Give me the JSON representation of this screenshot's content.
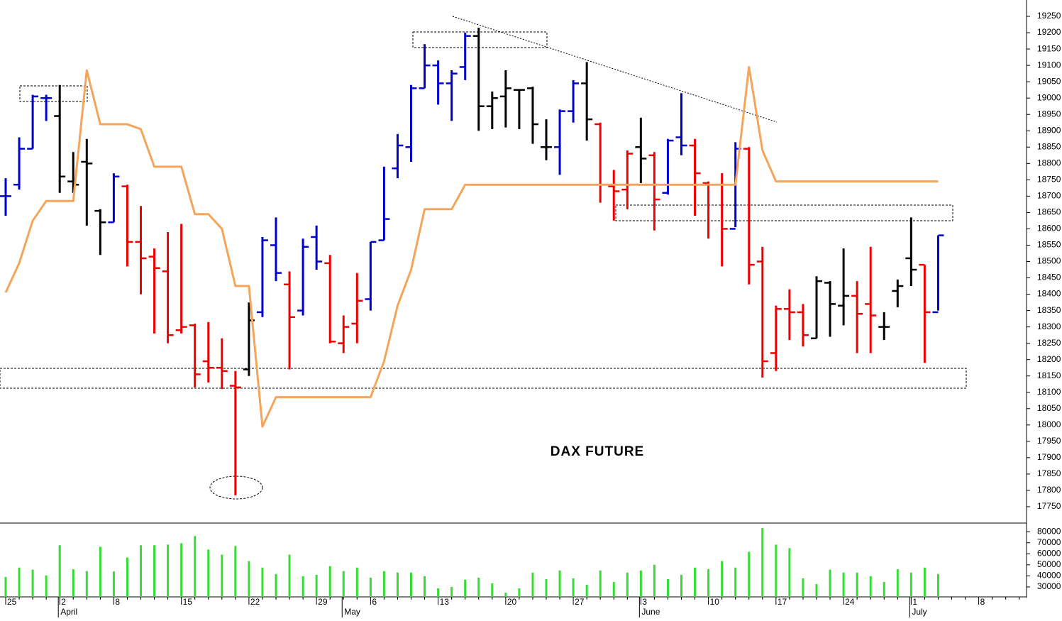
{
  "chart_data": [
    {
      "type": "ohlc",
      "title": "DAX FUTURE",
      "ylim": [
        17700,
        19300
      ],
      "yticks": [
        17750,
        17800,
        17850,
        17900,
        17950,
        18000,
        18050,
        18100,
        18150,
        18200,
        18250,
        18300,
        18350,
        18400,
        18450,
        18500,
        18550,
        18600,
        18650,
        18700,
        18750,
        18800,
        18850,
        18900,
        18950,
        19000,
        19050,
        19100,
        19150,
        19200,
        19250
      ],
      "open": [
        18700,
        18735,
        18845,
        19000,
        18945,
        18745,
        18805,
        18655,
        18620,
        18730,
        18560,
        18515,
        18470,
        18290,
        18305,
        18195,
        18175,
        18120,
        18170,
        18345,
        18550,
        18430,
        18350,
        18575,
        18495,
        18250,
        18310,
        18385,
        18565,
        18785,
        18850,
        19030,
        19100,
        19045,
        19095,
        19190,
        18975,
        19005,
        19025,
        19030,
        18850,
        18850,
        18960,
        19045,
        18920,
        18730,
        18720,
        18850,
        18825,
        18710,
        18880,
        18855,
        18740,
        18735,
        18600,
        18845,
        18500,
        18220,
        18355,
        18345,
        18265,
        18435,
        18365,
        18395,
        18370,
        18300,
        18410,
        18510,
        18490,
        18345
      ],
      "high": [
        18755,
        18880,
        19010,
        19010,
        19040,
        18835,
        18875,
        18660,
        18770,
        18735,
        18670,
        18540,
        18590,
        18615,
        18310,
        18315,
        18265,
        18165,
        18375,
        18575,
        18635,
        18470,
        18570,
        18610,
        18520,
        18335,
        18465,
        18560,
        18790,
        18890,
        19040,
        19165,
        19115,
        19085,
        19200,
        19215,
        19020,
        19085,
        19025,
        19035,
        18935,
        18965,
        19055,
        19110,
        18925,
        18780,
        18840,
        18940,
        18835,
        18875,
        19015,
        18875,
        18745,
        18770,
        18865,
        18850,
        18545,
        18365,
        18415,
        18370,
        18455,
        18440,
        18540,
        18440,
        18545,
        18345,
        18445,
        18635,
        18490,
        18580
      ],
      "low": [
        18640,
        18720,
        18845,
        18930,
        18710,
        18710,
        18610,
        18520,
        18620,
        18485,
        18400,
        18280,
        18250,
        18280,
        18115,
        18130,
        18110,
        17785,
        18150,
        18330,
        18440,
        18170,
        18335,
        18475,
        18250,
        18220,
        18250,
        18350,
        18565,
        18755,
        18805,
        19030,
        18980,
        18930,
        19055,
        18900,
        18905,
        18910,
        18905,
        18860,
        18810,
        18765,
        18925,
        18870,
        18680,
        18625,
        18660,
        18740,
        18595,
        18705,
        18825,
        18640,
        18570,
        18485,
        18605,
        18430,
        18145,
        18165,
        18260,
        18240,
        18265,
        18270,
        18305,
        18220,
        18220,
        18260,
        18360,
        18425,
        18190,
        18350
      ],
      "close": [
        18700,
        18845,
        19005,
        19000,
        18760,
        18735,
        18800,
        18620,
        18760,
        18560,
        18510,
        18480,
        18275,
        18300,
        18155,
        18175,
        18165,
        18115,
        18320,
        18565,
        18465,
        18330,
        18545,
        18500,
        18255,
        18300,
        18380,
        18560,
        18630,
        18855,
        19030,
        19100,
        19045,
        19075,
        19190,
        18975,
        19000,
        19030,
        19025,
        18920,
        18850,
        18960,
        19045,
        18935,
        18735,
        18715,
        18830,
        18815,
        18690,
        18870,
        18855,
        18770,
        18735,
        18600,
        18845,
        18490,
        18195,
        18355,
        18345,
        18275,
        18440,
        18370,
        18395,
        18340,
        18335,
        18300,
        18425,
        18475,
        18345,
        18580
      ],
      "bar_colors": [
        "#0000cc",
        "#0000cc",
        "#0000cc",
        "#0000cc",
        "#000000",
        "#000000",
        "#000000",
        "#000000",
        "#0000cc",
        "#ee0000",
        "#ee0000",
        "#ee0000",
        "#ee0000",
        "#ee0000",
        "#ee0000",
        "#ee0000",
        "#ee0000",
        "#ee0000",
        "#000000",
        "#0000cc",
        "#0000cc",
        "#ee0000",
        "#0000cc",
        "#0000cc",
        "#ee0000",
        "#ee0000",
        "#ee0000",
        "#0000cc",
        "#0000cc",
        "#0000cc",
        "#0000cc",
        "#0000cc",
        "#0000cc",
        "#0000cc",
        "#0000cc",
        "#000000",
        "#000000",
        "#000000",
        "#000000",
        "#000000",
        "#000000",
        "#0000cc",
        "#0000cc",
        "#000000",
        "#ee0000",
        "#ee0000",
        "#ee0000",
        "#000000",
        "#ee0000",
        "#0000cc",
        "#0000cc",
        "#ee0000",
        "#ee0000",
        "#ee0000",
        "#0000cc",
        "#ee0000",
        "#ee0000",
        "#ee0000",
        "#ee0000",
        "#ee0000",
        "#000000",
        "#000000",
        "#000000",
        "#ee0000",
        "#ee0000",
        "#000000",
        "#000000",
        "#000000",
        "#ee0000",
        "#0000cc"
      ],
      "line": {
        "color": "#f5a55a",
        "values": [
          18405,
          18495,
          18625,
          18685,
          18685,
          18685,
          19085,
          18920,
          18920,
          18920,
          18905,
          18790,
          18790,
          18790,
          18645,
          18645,
          18600,
          18425,
          18425,
          17995,
          18085,
          18085,
          18085,
          18085,
          18085,
          18085,
          18085,
          18085,
          18195,
          18365,
          18475,
          18660,
          18660,
          18660,
          18735,
          18735,
          18735,
          18735,
          18735,
          18735,
          18735,
          18735,
          18735,
          18735,
          18735,
          18735,
          18735,
          18735,
          18735,
          18735,
          18735,
          18735,
          18735,
          18735,
          18735,
          19095,
          18840,
          18745,
          18745,
          18745,
          18745,
          18745,
          18745,
          18745,
          18745,
          18745,
          18745,
          18745,
          18745,
          18745
        ]
      }
    },
    {
      "type": "bar",
      "color": "#33dd33",
      "ylim": [
        21000,
        87800
      ],
      "yticks": [
        30000,
        40000,
        50000,
        60000,
        70000,
        80000
      ],
      "categories": [
        "25",
        null,
        null,
        null,
        "2",
        null,
        null,
        null,
        "8",
        null,
        null,
        null,
        null,
        "15",
        null,
        null,
        null,
        null,
        "22",
        null,
        null,
        null,
        null,
        "29",
        null,
        null,
        null,
        "6",
        null,
        null,
        null,
        null,
        "13",
        null,
        null,
        null,
        null,
        "20",
        null,
        null,
        null,
        null,
        "27",
        null,
        null,
        null,
        null,
        "3",
        null,
        null,
        null,
        null,
        "10",
        null,
        null,
        null,
        null,
        "17",
        null,
        null,
        null,
        null,
        "24",
        null,
        null,
        null,
        null,
        "1",
        null,
        null,
        null,
        null,
        "8",
        null,
        null,
        null
      ],
      "month_labels": [
        {
          "label": "April",
          "index": 4
        },
        {
          "label": "May",
          "index": 25
        },
        {
          "label": "June",
          "index": 47
        },
        {
          "label": "July",
          "index": 67
        }
      ],
      "values": [
        39000,
        47500,
        45600,
        40400,
        67700,
        46000,
        44300,
        66400,
        44000,
        56600,
        67700,
        67700,
        68300,
        69600,
        76100,
        63800,
        59200,
        67000,
        53400,
        47500,
        41700,
        59200,
        39700,
        41000,
        48800,
        44300,
        47500,
        38400,
        44300,
        43000,
        43000,
        39700,
        28700,
        30000,
        36500,
        38400,
        33200,
        24800,
        28700,
        43000,
        37100,
        44900,
        37800,
        31900,
        44900,
        34500,
        43000,
        44900,
        50100,
        37100,
        41000,
        47500,
        46000,
        53400,
        47500,
        61800,
        83200,
        68300,
        65100,
        37800,
        32600,
        45600,
        43000,
        43000,
        39700,
        34500,
        46000,
        43000,
        47500,
        41700,
        null,
        null,
        null,
        null,
        null,
        null
      ]
    }
  ]
}
